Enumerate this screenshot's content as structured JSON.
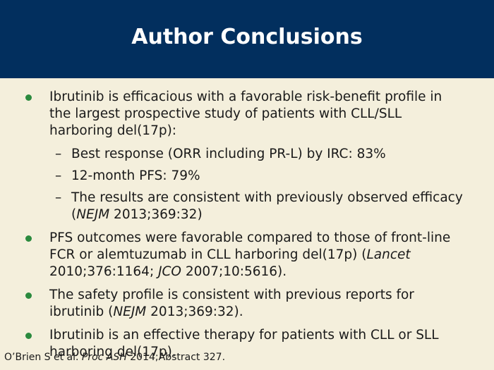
{
  "title": "Author Conclusions",
  "bullet_color": "#2b8a3e",
  "header_color": "#022f5e",
  "bullets": [
    {
      "text": "Ibrutinib is efficacious with a favorable risk-benefit profile in the largest prospective study of patients with CLL/SLL harboring del(17p):"
    },
    {
      "text": "PFS outcomes were favorable compared to those of front-line FCR or alemtuzumab in CLL harboring del(17p) (",
      "ref1": "Lancet",
      "mid": " 2010;376:1164; ",
      "ref2": "JCO",
      "end": " 2007;10:5616)."
    },
    {
      "text": "The safety profile is consistent with previous reports for ibrutinib (",
      "ref": "NEJM",
      "end": " 2013;369:32)."
    },
    {
      "text": "Ibrutinib is an effective therapy for patients with CLL or SLL harboring del(17p)."
    }
  ],
  "sub_bullets": [
    {
      "text": "Best response (ORR including PR-L) by IRC: 83%"
    },
    {
      "text": "12-month PFS: 79%"
    },
    {
      "text": "The results are consistent with previously observed efficacy (",
      "ref": "NEJM",
      "end": " 2013;369:32)"
    }
  ],
  "footer": {
    "pre": "O’Brien S et al. ",
    "journal": "Proc ASH",
    "post": " 2014;Abstract 327."
  }
}
